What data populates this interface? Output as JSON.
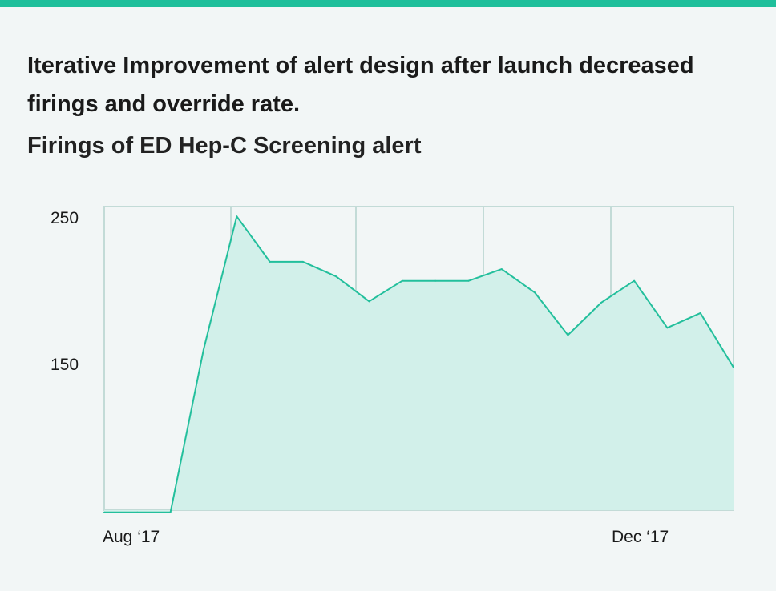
{
  "header": {
    "title": "Iterative Improvement of alert design after launch decreased firings and override rate.",
    "subtitle": "Firings of ED Hep-C Screening alert"
  },
  "colors": {
    "accent_bar": "#1fbf9b",
    "line": "#23bf9c",
    "area_fill": "#d2f0ea",
    "grid": "#c3dbd7",
    "background": "#f2f6f6"
  },
  "chart_data": {
    "type": "area",
    "title": "Firings of ED Hep-C Screening alert",
    "xlabel": "",
    "ylabel": "",
    "x_ticks": [
      "Aug ‘17",
      "Dec ‘17"
    ],
    "y_ticks": [
      150,
      250
    ],
    "ylim": [
      47,
      250
    ],
    "grid": true,
    "series": [
      {
        "values": [
          49,
          49,
          49,
          160,
          251,
          220,
          220,
          210,
          193,
          207,
          207,
          207,
          215,
          199,
          170,
          192,
          207,
          175,
          185,
          148
        ]
      }
    ]
  }
}
